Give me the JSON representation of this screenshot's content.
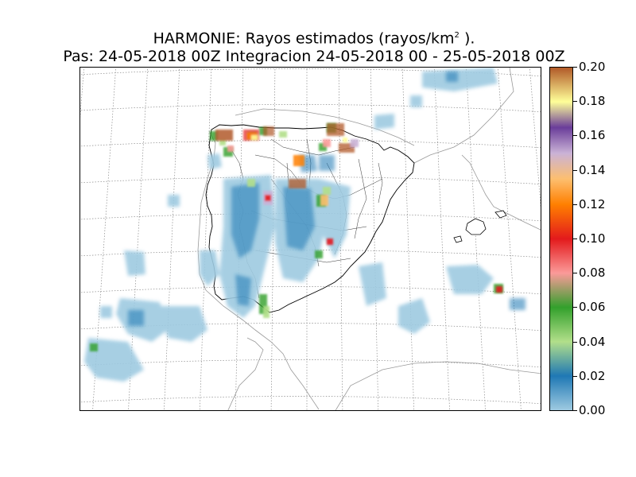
{
  "title": {
    "line1_prefix": "HARMONIE: Rayos estimados  (rayos/km",
    "line1_sup": "2",
    "line1_suffix": " ).",
    "line2": "Pas: 24-05-2018 00Z Integracion 24-05-2018 00 - 25-05-2018 00Z"
  },
  "colorbar": {
    "min": 0.0,
    "max": 0.2,
    "tick_labels": [
      "0.20",
      "0.18",
      "0.16",
      "0.14",
      "0.12",
      "0.10",
      "0.08",
      "0.06",
      "0.04",
      "0.02",
      "0.00"
    ],
    "colors": [
      {
        "value": 0.0,
        "color": "#9ecae1"
      },
      {
        "value": 0.02,
        "color": "#1f78b4"
      },
      {
        "value": 0.04,
        "color": "#b2df8a"
      },
      {
        "value": 0.06,
        "color": "#33a02c"
      },
      {
        "value": 0.08,
        "color": "#fb9a99"
      },
      {
        "value": 0.1,
        "color": "#e31a1c"
      },
      {
        "value": 0.12,
        "color": "#ff7f00"
      },
      {
        "value": 0.135,
        "color": "#fdbf6f"
      },
      {
        "value": 0.15,
        "color": "#cab2d6"
      },
      {
        "value": 0.165,
        "color": "#6a3d9a"
      },
      {
        "value": 0.18,
        "color": "#ffff99"
      },
      {
        "value": 0.2,
        "color": "#b15928"
      }
    ]
  }
}
